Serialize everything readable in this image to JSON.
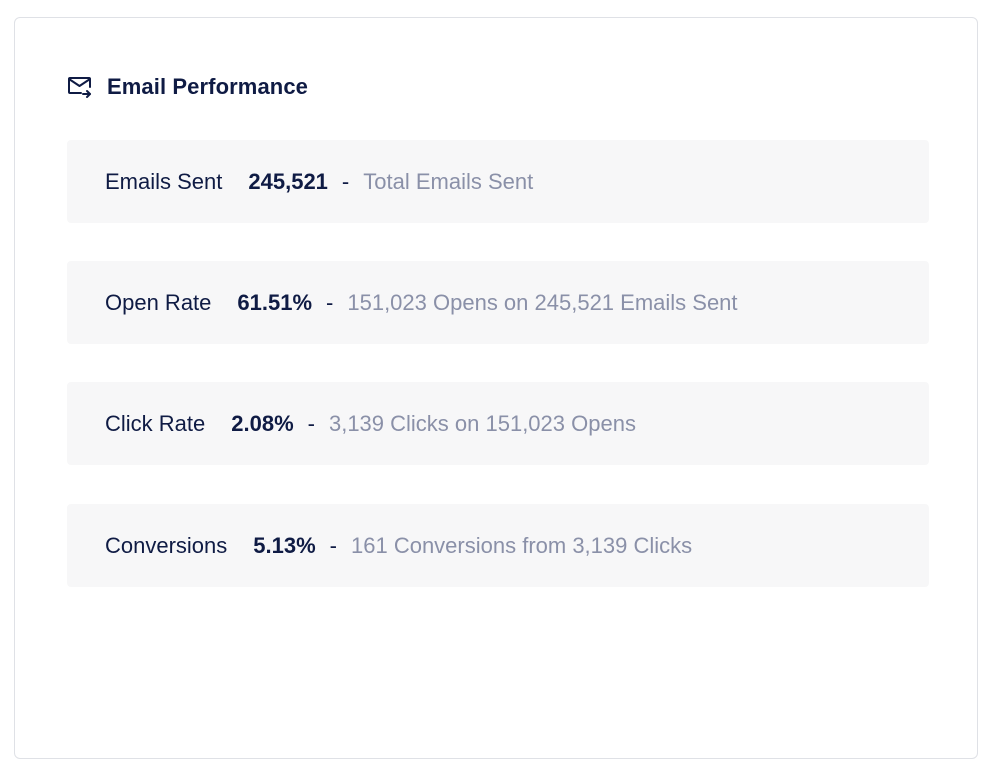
{
  "header": {
    "title": "Email Performance",
    "icon": "mail-forward-icon"
  },
  "metrics": [
    {
      "label": "Emails Sent",
      "value": "245,521",
      "separator": "-",
      "description": "Total Emails Sent"
    },
    {
      "label": "Open Rate",
      "value": "61.51%",
      "separator": "-",
      "description": "151,023 Opens on 245,521 Emails Sent"
    },
    {
      "label": "Click Rate",
      "value": "2.08%",
      "separator": "-",
      "description": "3,139 Clicks on 151,023 Opens"
    },
    {
      "label": "Conversions",
      "value": "5.13%",
      "separator": "-",
      "description": "161 Conversions from 3,139 Clicks"
    }
  ],
  "colors": {
    "text_primary": "#0f1b44",
    "text_muted": "#8a90a8",
    "row_background": "#f7f7f8",
    "card_border": "#dfe1e6"
  }
}
